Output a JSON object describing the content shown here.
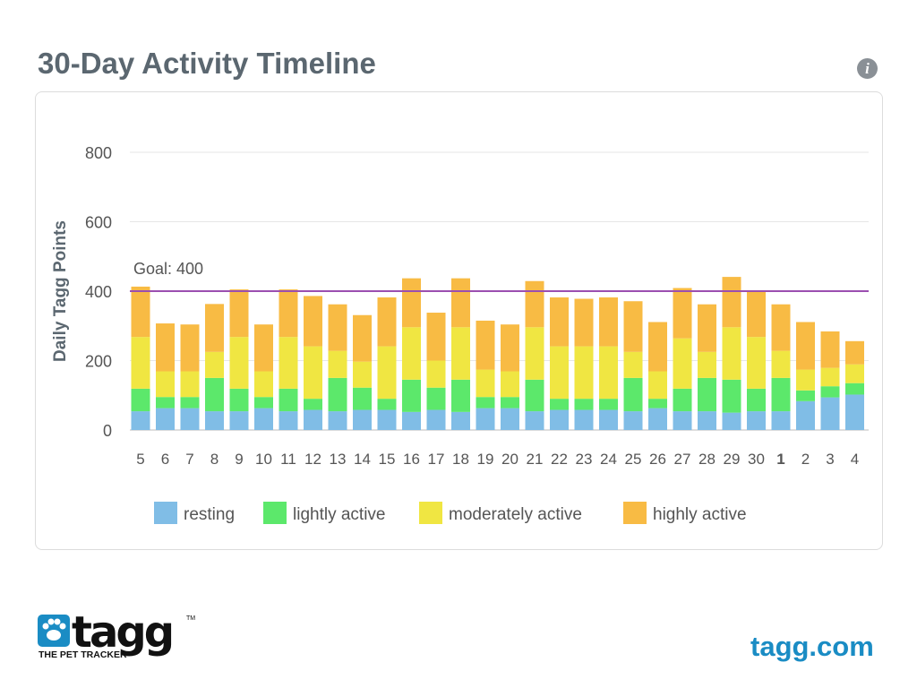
{
  "header": {
    "title": "30-Day Activity Timeline",
    "info_icon": "info-icon"
  },
  "footer": {
    "brand": "tagg",
    "tagline": "THE PET TRACKER",
    "trademark": "TM",
    "site": "tagg.com"
  },
  "chart_data": {
    "type": "bar",
    "stacked": true,
    "title": "30-Day Activity Timeline",
    "xlabel": "",
    "ylabel": "Daily Tagg Points",
    "ylim": [
      0,
      800
    ],
    "yticks": [
      0,
      200,
      400,
      600,
      800
    ],
    "grid": true,
    "goal": {
      "value": 400,
      "label": "Goal: 400",
      "color": "#9b4fb0"
    },
    "categories": [
      "5",
      "6",
      "7",
      "8",
      "9",
      "10",
      "11",
      "12",
      "13",
      "14",
      "15",
      "16",
      "17",
      "18",
      "19",
      "20",
      "21",
      "22",
      "23",
      "24",
      "25",
      "26",
      "27",
      "28",
      "29",
      "30",
      "1",
      "2",
      "3",
      "4"
    ],
    "bold_categories": [
      "1"
    ],
    "legend_position": "bottom",
    "series": [
      {
        "name": "resting",
        "color": "#80bde6",
        "values": [
          54,
          63,
          63,
          54,
          54,
          63,
          54,
          58,
          54,
          58,
          58,
          52,
          58,
          52,
          63,
          63,
          54,
          58,
          58,
          58,
          54,
          63,
          54,
          54,
          50,
          54,
          54,
          83,
          94,
          102
        ]
      },
      {
        "name": "lightly active",
        "color": "#5ce86b",
        "values": [
          65,
          32,
          32,
          96,
          65,
          32,
          65,
          32,
          96,
          64,
          32,
          93,
          64,
          93,
          32,
          32,
          91,
          32,
          32,
          32,
          96,
          27,
          65,
          96,
          95,
          65,
          96,
          31,
          32,
          33
        ]
      },
      {
        "name": "moderately active",
        "color": "#f0e642",
        "values": [
          149,
          74,
          74,
          75,
          149,
          74,
          149,
          151,
          78,
          75,
          151,
          151,
          78,
          151,
          79,
          74,
          151,
          151,
          151,
          151,
          75,
          79,
          145,
          75,
          151,
          149,
          78,
          60,
          53,
          54
        ]
      },
      {
        "name": "highly active",
        "color": "#f8bb44",
        "values": [
          145,
          138,
          135,
          138,
          137,
          135,
          137,
          145,
          134,
          134,
          141,
          141,
          138,
          141,
          141,
          135,
          133,
          141,
          137,
          141,
          146,
          142,
          145,
          137,
          145,
          134,
          134,
          137,
          105,
          67
        ]
      }
    ]
  }
}
